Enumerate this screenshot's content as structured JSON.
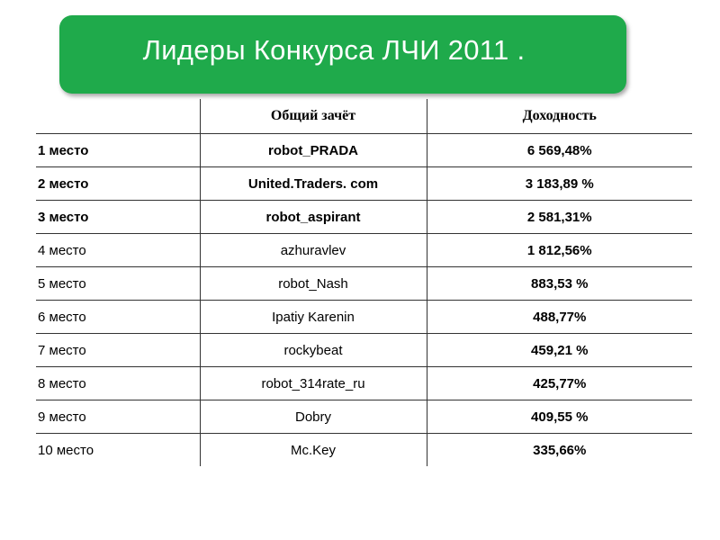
{
  "header": {
    "title": "Лидеры Конкурса ЛЧИ 2011 ."
  },
  "table": {
    "columns": [
      "",
      "Общий зачёт",
      "Доходность"
    ],
    "rows": [
      {
        "place": "1 место",
        "name": "robot_PRADA",
        "return": "6 569,48%"
      },
      {
        "place": "2 место",
        "name": "United.Traders. com",
        "return": "3 183,89 %"
      },
      {
        "place": "3 место",
        "name": "robot_aspirant",
        "return": "2 581,31%"
      },
      {
        "place": "4 место",
        "name": "azhuravlev",
        "return": "1 812,56%"
      },
      {
        "place": "5 место",
        "name": "robot_Nash",
        "return": "883,53 %"
      },
      {
        "place": "6 место",
        "name": "Ipatiy Karenin",
        "return": "488,77%"
      },
      {
        "place": "7 место",
        "name": "rockybeat",
        "return": "459,21 %"
      },
      {
        "place": "8 место",
        "name": "robot_314rate_ru",
        "return": "425,77%"
      },
      {
        "place": "9 место",
        "name": "Dobry",
        "return": "409,55 %"
      },
      {
        "place": "10 место",
        "name": "Mc.Key",
        "return": "335,66%"
      }
    ]
  }
}
